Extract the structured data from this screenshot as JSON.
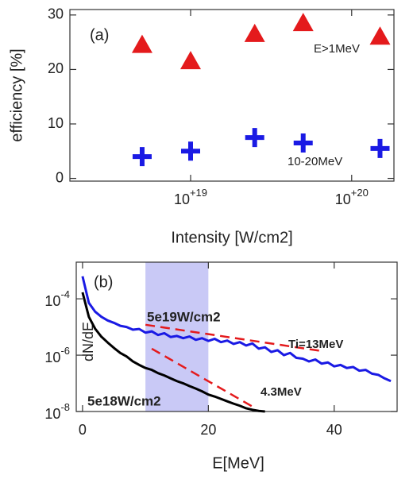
{
  "chart_data": [
    {
      "type": "scatter",
      "annotation": "(a)",
      "ylabel": "efficiency [%]",
      "xlabel": "Intensity [W/cm2]",
      "xscale": "log",
      "xlim": [
        1.78e+18,
        1.83e+20
      ],
      "xticks": [
        {
          "value": 1e+19,
          "label": "10+19"
        },
        {
          "value": 1e+20,
          "label": "10+20"
        }
      ],
      "ylim": [
        -0.5,
        31
      ],
      "yticks": [
        0,
        10,
        20,
        30
      ],
      "x": [
        5e+18,
        1e+19,
        2.5e+19,
        5e+19,
        1.5e+20
      ],
      "series": [
        {
          "name": "E>1MeV",
          "color": "#e41a1c",
          "marker": "triangle",
          "values": [
            24.5,
            21.5,
            26.5,
            28.5,
            26
          ]
        },
        {
          "name": "10-20MeV",
          "color": "#1a1ae4",
          "marker": "plus",
          "values": [
            4,
            5,
            7.5,
            6.5,
            5.5
          ]
        }
      ]
    },
    {
      "type": "line",
      "annotation": "(b)",
      "ylabel": "dN/dE",
      "xlabel": "E[MeV]",
      "yscale": "log",
      "xlim": [
        -1,
        50
      ],
      "xticks": [
        0,
        20,
        40
      ],
      "ylim": [
        1e-08,
        0.002
      ],
      "yticks": [
        {
          "value": 1e-08,
          "label": "10-8"
        },
        {
          "value": 1e-06,
          "label": "10-6"
        },
        {
          "value": 0.0001,
          "label": "10-4"
        }
      ],
      "highlight": [
        10,
        20
      ],
      "highlight_color": "#c9c9f6",
      "series": [
        {
          "name": "5e19W/cm2",
          "color": "#1a1ae4",
          "style": "solid",
          "x": [
            0,
            1,
            2,
            3,
            4,
            5,
            6,
            7,
            8,
            9,
            10,
            11,
            12,
            13,
            14,
            15,
            16,
            17,
            18,
            19,
            20,
            21,
            22,
            23,
            24,
            25,
            26,
            27,
            28,
            29,
            30,
            31,
            32,
            33,
            34,
            35,
            36,
            37,
            38,
            39,
            40,
            41,
            42,
            43,
            44,
            45,
            46,
            47,
            48,
            49
          ],
          "values": [
            0.00063,
            7.2e-05,
            3.5e-05,
            2.3e-05,
            1.7e-05,
            1.4e-05,
            1.1e-05,
            1e-05,
            8e-06,
            8.5e-06,
            6.3e-06,
            7e-06,
            5.2e-06,
            6e-06,
            4.4e-06,
            4.8e-06,
            4e-06,
            4.6e-06,
            3.5e-06,
            4e-06,
            3.2e-06,
            3.8e-06,
            2.9e-06,
            3.3e-06,
            2.5e-06,
            2.9e-06,
            2.2e-06,
            2.6e-06,
            1.7e-06,
            1.9e-06,
            1.3e-06,
            1.5e-06,
            1e-06,
            1.2e-06,
            8e-07,
            7.5e-07,
            6e-07,
            7e-07,
            5e-07,
            5.5e-07,
            4e-07,
            4.5e-07,
            3.5e-07,
            3.8e-07,
            2.8e-07,
            3e-07,
            2.2e-07,
            2e-07,
            1.5e-07,
            1.2e-07
          ]
        },
        {
          "name": "5e18W/cm2",
          "color": "#000000",
          "style": "solid",
          "x": [
            0,
            1,
            2,
            3,
            4,
            5,
            6,
            7,
            8,
            9,
            10,
            11,
            12,
            13,
            14,
            15,
            16,
            17,
            18,
            19,
            20,
            21,
            22,
            23,
            24,
            25,
            26,
            27,
            28,
            29
          ],
          "values": [
            0.00017,
            2.3e-05,
            8.7e-06,
            4.5e-06,
            2.8e-06,
            1.8e-06,
            1.2e-06,
            9e-07,
            6e-07,
            4.5e-07,
            3.5e-07,
            3e-07,
            2.3e-07,
            1.9e-07,
            1.5e-07,
            1.2e-07,
            1e-07,
            8e-08,
            6.5e-08,
            5.2e-08,
            4e-08,
            3.4e-08,
            2.8e-08,
            2.3e-08,
            1.9e-08,
            1.6e-08,
            1.3e-08,
            1.15e-08,
            1.05e-08,
            1e-08
          ]
        },
        {
          "name": "Ti=13MeV",
          "color": "#e41a1c",
          "style": "dashed",
          "x": [
            10,
            38
          ],
          "values": [
            1.2e-05,
            1.4e-06
          ]
        },
        {
          "name": "4.3MeV",
          "color": "#e41a1c",
          "style": "dashed",
          "x": [
            11,
            27
          ],
          "values": [
            1.7e-06,
            1.5e-08
          ]
        }
      ]
    }
  ]
}
